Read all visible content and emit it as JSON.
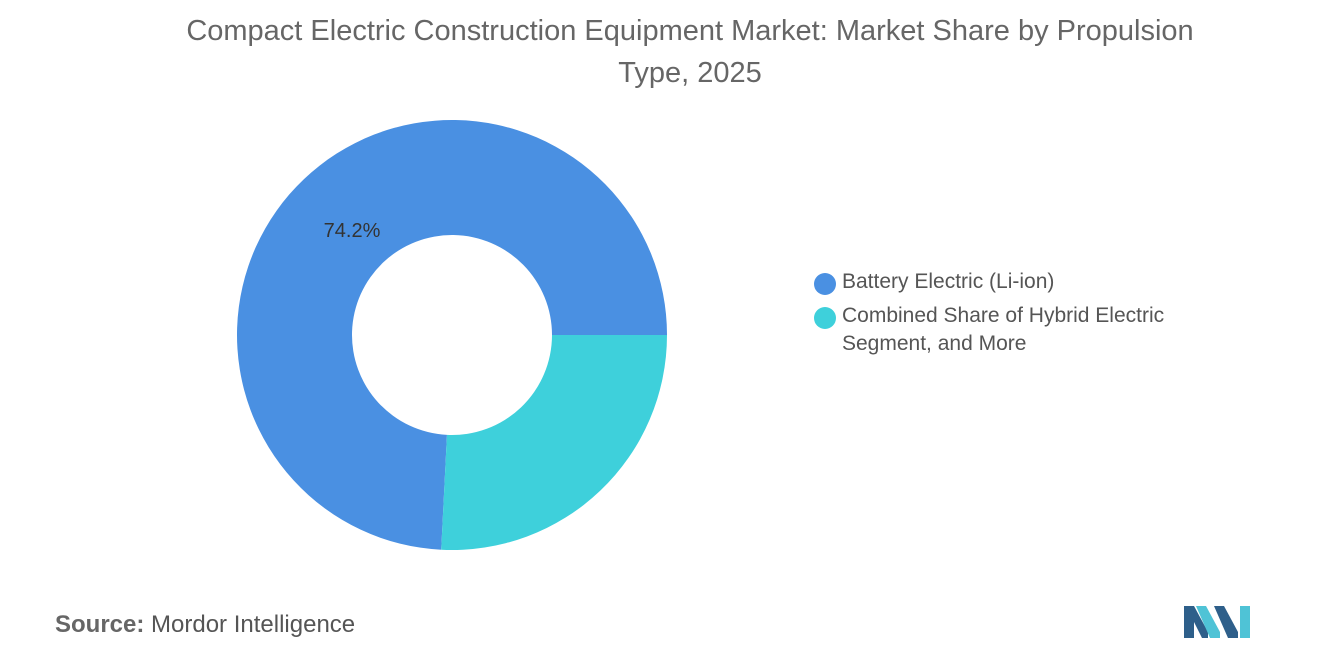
{
  "chart_data": {
    "type": "pie",
    "title": "Compact Electric Construction Equipment Market: Market Share by Propulsion Type, 2025",
    "categories": [
      "Battery Electric (Li-ion)",
      "Combined Share of Hybrid Electric Segment, and More"
    ],
    "values": [
      74.2,
      25.8
    ],
    "data_labels": [
      "74.2%",
      ""
    ],
    "colors": [
      "#4A90E2",
      "#3ED0DB"
    ],
    "legend_placement": "right",
    "donut": true
  },
  "legend": {
    "items": [
      {
        "label": "Battery Electric (Li-ion)",
        "color": "#4A90E2"
      },
      {
        "label": "Combined Share of Hybrid Electric Segment, and More",
        "color": "#3ED0DB"
      }
    ]
  },
  "source": {
    "label": "Source:",
    "text": "Mordor Intelligence"
  },
  "logo": {
    "icon": "mordor-intelligence-logo-icon",
    "colors": [
      "#2E5F8A",
      "#4FC3D6"
    ]
  }
}
